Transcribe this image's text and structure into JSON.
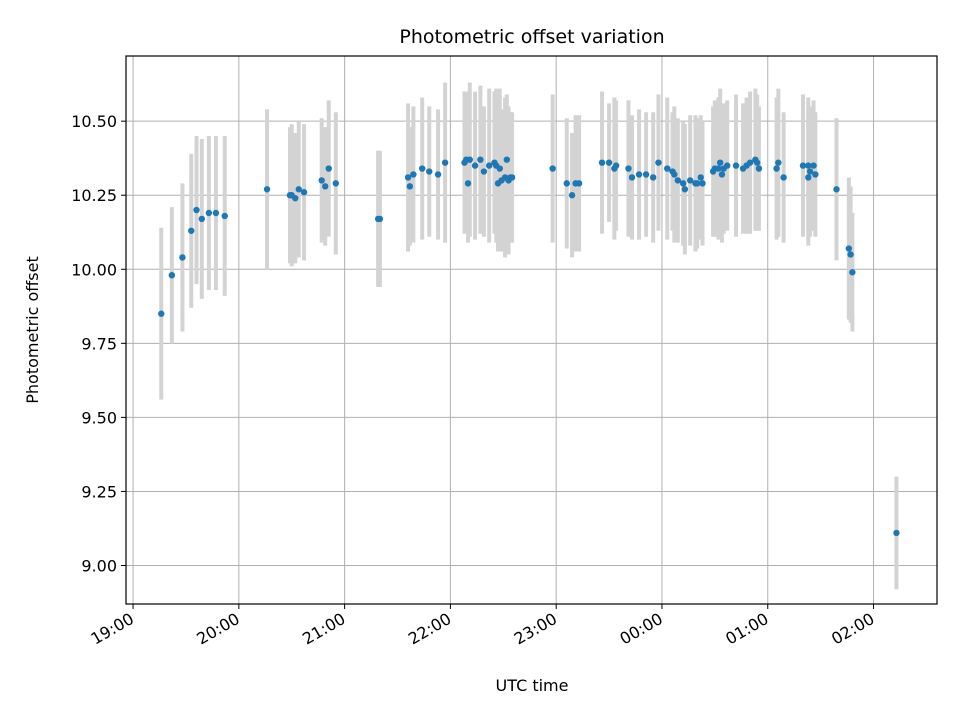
{
  "chart_data": {
    "type": "scatter",
    "title": "Photometric offset variation",
    "xlabel": "UTC time",
    "ylabel": "Photometric offset",
    "grid": true,
    "legend": "none",
    "colors": {
      "point": "#1f77b4",
      "errorbar": "#d3d3d3"
    },
    "xlim": [
      "18:56",
      "02:36"
    ],
    "ylim": [
      8.87,
      10.72
    ],
    "x_ticks": [
      "19:00",
      "20:00",
      "21:00",
      "22:00",
      "23:00",
      "00:00",
      "01:00",
      "02:00"
    ],
    "y_ticks": [
      "9.00",
      "9.25",
      "9.50",
      "9.75",
      "10.00",
      "10.25",
      "10.50"
    ],
    "y_tick_values": [
      9.0,
      9.25,
      9.5,
      9.75,
      10.0,
      10.25,
      10.5
    ],
    "series": [
      {
        "x": [
          "19:16",
          "19:22",
          "19:28",
          "19:33",
          "19:36",
          "19:39",
          "19:43",
          "19:47",
          "19:52",
          "20:16",
          "20:29",
          "20:30",
          "20:32",
          "20:34",
          "20:37",
          "20:47",
          "20:49",
          "20:51",
          "20:55",
          "21:19",
          "21:20",
          "21:36",
          "21:37",
          "21:39",
          "21:44",
          "21:48",
          "21:53",
          "21:57",
          "22:08",
          "22:09",
          "22:10",
          "22:11",
          "22:14",
          "22:17",
          "22:19",
          "22:22",
          "22:25",
          "22:26",
          "22:27",
          "22:28",
          "22:29",
          "22:31",
          "22:32",
          "22:33",
          "22:34",
          "22:35",
          "22:58",
          "23:06",
          "23:09",
          "23:11",
          "23:13",
          "23:26",
          "23:30",
          "23:33",
          "23:34",
          "23:41",
          "23:43",
          "23:47",
          "23:51",
          "23:55",
          "23:58",
          "00:03",
          "00:06",
          "00:07",
          "00:09",
          "00:12",
          "00:13",
          "00:16",
          "00:19",
          "00:20",
          "00:22",
          "00:23",
          "00:29",
          "00:30",
          "00:32",
          "00:33",
          "00:34",
          "00:35",
          "00:37",
          "00:42",
          "00:46",
          "00:48",
          "00:50",
          "00:53",
          "00:54",
          "00:55",
          "01:05",
          "01:06",
          "01:09",
          "01:20",
          "01:23",
          "01:23",
          "01:24",
          "01:26",
          "01:27",
          "01:39",
          "01:46",
          "01:47",
          "01:48"
        ],
        "y": [
          9.85,
          9.98,
          10.04,
          10.13,
          10.2,
          10.17,
          10.19,
          10.19,
          10.18,
          10.27,
          10.25,
          10.25,
          10.24,
          10.27,
          10.26,
          10.3,
          10.28,
          10.34,
          10.29,
          10.17,
          10.17,
          10.31,
          10.28,
          10.32,
          10.34,
          10.33,
          10.32,
          10.36,
          10.36,
          10.37,
          10.29,
          10.37,
          10.35,
          10.37,
          10.33,
          10.35,
          10.36,
          10.35,
          10.29,
          10.34,
          10.3,
          10.31,
          10.37,
          10.3,
          10.31,
          10.31,
          10.34,
          10.29,
          10.25,
          10.29,
          10.29,
          10.36,
          10.36,
          10.34,
          10.35,
          10.34,
          10.31,
          10.32,
          10.32,
          10.31,
          10.36,
          10.34,
          10.33,
          10.32,
          10.3,
          10.29,
          10.27,
          10.3,
          10.29,
          10.29,
          10.31,
          10.29,
          10.33,
          10.34,
          10.34,
          10.36,
          10.32,
          10.34,
          10.35,
          10.35,
          10.34,
          10.35,
          10.36,
          10.37,
          10.36,
          10.34,
          10.34,
          10.36,
          10.31,
          10.35,
          10.31,
          10.35,
          10.33,
          10.35,
          10.32,
          10.27,
          10.07,
          10.05,
          9.99
        ],
        "err": [
          0.29,
          0.23,
          0.25,
          0.26,
          0.25,
          0.27,
          0.26,
          0.26,
          0.27,
          0.27,
          0.23,
          0.24,
          0.22,
          0.23,
          0.23,
          0.21,
          0.2,
          0.23,
          0.24,
          0.23,
          0.23,
          0.25,
          0.2,
          0.23,
          0.24,
          0.22,
          0.22,
          0.27,
          0.24,
          0.23,
          0.2,
          0.26,
          0.25,
          0.25,
          0.22,
          0.26,
          0.24,
          0.26,
          0.23,
          0.27,
          0.24,
          0.27,
          0.22,
          0.25,
          0.22,
          0.22,
          0.25,
          0.22,
          0.21,
          0.23,
          0.23,
          0.24,
          0.2,
          0.24,
          0.22,
          0.23,
          0.21,
          0.22,
          0.21,
          0.22,
          0.23,
          0.24,
          0.2,
          0.23,
          0.21,
          0.21,
          0.22,
          0.22,
          0.23,
          0.22,
          0.21,
          0.21,
          0.22,
          0.23,
          0.24,
          0.25,
          0.23,
          0.22,
          0.22,
          0.24,
          0.22,
          0.23,
          0.24,
          0.24,
          0.23,
          0.21,
          0.24,
          0.25,
          0.22,
          0.24,
          0.23,
          0.23,
          0.22,
          0.22,
          0.21,
          0.24,
          0.24,
          0.23,
          0.2
        ]
      },
      {
        "x": [
          "02:13"
        ],
        "y": [
          9.11
        ],
        "err": [
          0.19
        ]
      }
    ]
  }
}
